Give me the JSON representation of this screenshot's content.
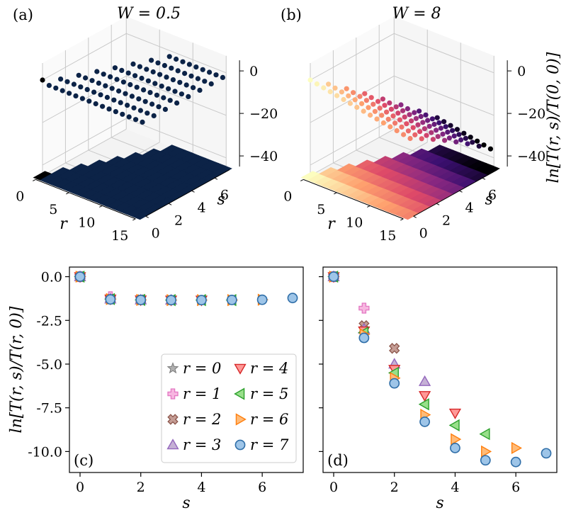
{
  "chart_data": [
    {
      "panel": "(a)",
      "type": "scatter3d",
      "title": "W = 0.5",
      "xlabel": "r",
      "ylabel": "s",
      "zlabel": "",
      "r_ticks": [
        "0",
        "5",
        "10",
        "15"
      ],
      "s_ticks": [
        "0",
        "2",
        "4",
        "6"
      ],
      "z_ticks": [
        "0",
        "−20",
        "−40"
      ],
      "description": "ln T(r,s)/T(0,0) on triangular grid r = 0..15, s = 0..min(r,7); value 0 at origin, about −1.3 elsewhere",
      "surface_color": "#0c2347"
    },
    {
      "panel": "(b)",
      "type": "scatter3d",
      "title": "W = 8",
      "xlabel": "r",
      "ylabel": "s",
      "zlabel": "ln[T(r, s)/T(0, 0)]",
      "r_ticks": [
        "0",
        "5",
        "10",
        "15"
      ],
      "s_ticks": [
        "0",
        "2",
        "4",
        "6"
      ],
      "z_ticks": [
        "0",
        "−20",
        "−40"
      ],
      "colormap": [
        "#000004",
        "#3b0f70",
        "#8c2981",
        "#de4968",
        "#fe9f6d",
        "#fcfdbf"
      ]
    },
    {
      "panel": "(c)",
      "type": "scatter",
      "xlabel": "s",
      "ylabel": "ln[T(r, s)/T(r, 0)]",
      "xlim": [
        -0.35,
        7.35
      ],
      "ylim": [
        -11.2,
        0.55
      ],
      "xticks": [
        0,
        2,
        4,
        6
      ],
      "yticks": [
        0.0,
        -2.5,
        -5.0,
        -7.5,
        -10.0
      ],
      "ytick_labels": [
        "0.0",
        "-2.5",
        "-5.0",
        "-7.5",
        "-10.0"
      ],
      "xtick_labels": [
        "0",
        "2",
        "4",
        "6"
      ],
      "series": [
        {
          "name": "r = 0",
          "s": [
            0
          ],
          "y": [
            0.0
          ]
        },
        {
          "name": "r = 1",
          "s": [
            0,
            1
          ],
          "y": [
            0.0,
            -1.15
          ]
        },
        {
          "name": "r = 2",
          "s": [
            0,
            1,
            2
          ],
          "y": [
            0.0,
            -1.28,
            -1.32
          ]
        },
        {
          "name": "r = 3",
          "s": [
            0,
            1,
            2,
            3
          ],
          "y": [
            0.0,
            -1.28,
            -1.33,
            -1.34
          ]
        },
        {
          "name": "r = 4",
          "s": [
            0,
            1,
            2,
            3,
            4
          ],
          "y": [
            0.0,
            -1.28,
            -1.33,
            -1.34,
            -1.34
          ]
        },
        {
          "name": "r = 5",
          "s": [
            0,
            1,
            2,
            3,
            4,
            5
          ],
          "y": [
            0.0,
            -1.28,
            -1.33,
            -1.34,
            -1.34,
            -1.34
          ]
        },
        {
          "name": "r = 6",
          "s": [
            0,
            1,
            2,
            3,
            4,
            5,
            6
          ],
          "y": [
            0.0,
            -1.28,
            -1.33,
            -1.34,
            -1.34,
            -1.34,
            -1.32
          ]
        },
        {
          "name": "r = 7",
          "s": [
            0,
            1,
            2,
            3,
            4,
            5,
            6,
            7
          ],
          "y": [
            0.0,
            -1.3,
            -1.33,
            -1.34,
            -1.34,
            -1.33,
            -1.32,
            -1.22
          ]
        }
      ]
    },
    {
      "panel": "(d)",
      "type": "scatter",
      "xlabel": "s",
      "xlim": [
        -0.35,
        7.35
      ],
      "ylim": [
        -11.2,
        0.55
      ],
      "xticks": [
        0,
        2,
        4,
        6
      ],
      "xtick_labels": [
        "0",
        "2",
        "4",
        "6"
      ],
      "series": [
        {
          "name": "r = 0",
          "s": [
            0
          ],
          "y": [
            0.0
          ]
        },
        {
          "name": "r = 1",
          "s": [
            0,
            1
          ],
          "y": [
            0.0,
            -1.8
          ]
        },
        {
          "name": "r = 2",
          "s": [
            0,
            1,
            2
          ],
          "y": [
            0.0,
            -2.8,
            -4.1
          ]
        },
        {
          "name": "r = 3",
          "s": [
            0,
            1,
            2,
            3
          ],
          "y": [
            0.0,
            -3.0,
            -5.0,
            -6.0
          ]
        },
        {
          "name": "r = 4",
          "s": [
            0,
            1,
            2,
            3,
            4
          ],
          "y": [
            0.0,
            -3.1,
            -5.3,
            -6.8,
            -7.8
          ]
        },
        {
          "name": "r = 5",
          "s": [
            0,
            1,
            2,
            3,
            4,
            5
          ],
          "y": [
            0.0,
            -3.2,
            -5.5,
            -7.3,
            -8.5,
            -9.0
          ]
        },
        {
          "name": "r = 6",
          "s": [
            0,
            1,
            2,
            3,
            4,
            5,
            6
          ],
          "y": [
            0.0,
            -3.3,
            -5.8,
            -7.9,
            -9.3,
            -10.0,
            -9.8
          ]
        },
        {
          "name": "r = 7",
          "s": [
            0,
            1,
            2,
            3,
            4,
            5,
            6,
            7
          ],
          "y": [
            0.0,
            -3.5,
            -6.1,
            -8.3,
            -9.8,
            -10.5,
            -10.6,
            -10.1
          ]
        }
      ]
    }
  ],
  "legend": {
    "location": "lower-right of panel (c)",
    "entries": [
      {
        "label": "r = 0",
        "marker": "star",
        "color": "#8c8c8c"
      },
      {
        "label": "r = 1",
        "marker": "plus",
        "color": "#e377c2"
      },
      {
        "label": "r = 2",
        "marker": "x",
        "color": "#8c564b"
      },
      {
        "label": "r = 3",
        "marker": "triangle-up",
        "color": "#9467bd"
      },
      {
        "label": "r = 4",
        "marker": "triangle-down",
        "color": "#d62728"
      },
      {
        "label": "r = 5",
        "marker": "triangle-left",
        "color": "#2ca02c"
      },
      {
        "label": "r = 6",
        "marker": "triangle-right",
        "color": "#ff7f0e"
      },
      {
        "label": "r = 7",
        "marker": "circle",
        "color": "#1f77b4"
      }
    ]
  },
  "panel_labels": [
    "(a)",
    "(b)",
    "(c)",
    "(d)"
  ]
}
